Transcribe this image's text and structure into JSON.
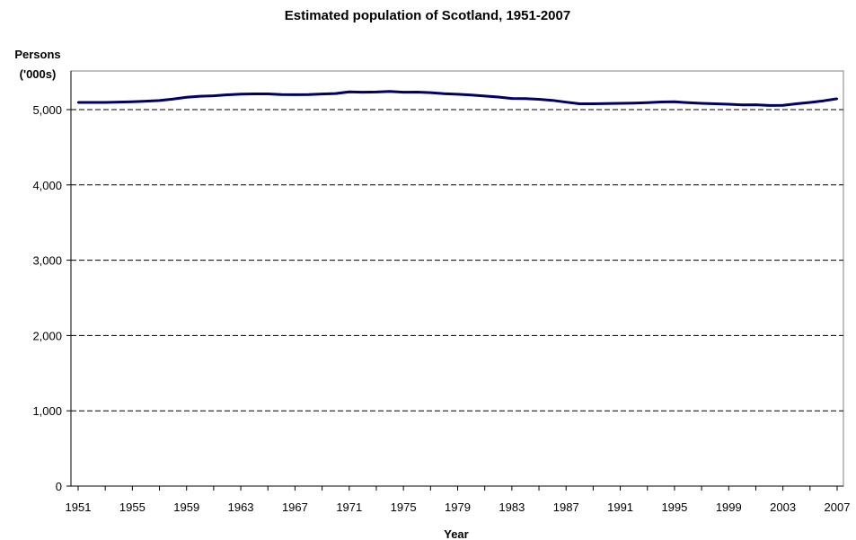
{
  "chart_data": {
    "type": "line",
    "title": "Estimated population of Scotland, 1951-2007",
    "ylabel_line1": "Persons",
    "ylabel_line2": "('000s)",
    "xlabel": "Year",
    "ylim": [
      0,
      5000
    ],
    "xlim": [
      1951,
      2007
    ],
    "grid": true,
    "legend": "none",
    "x_ticks": [
      1951,
      1955,
      1959,
      1963,
      1967,
      1971,
      1975,
      1979,
      1983,
      1987,
      1991,
      1995,
      1999,
      2003,
      2007
    ],
    "y_ticks": [
      0,
      1000,
      2000,
      3000,
      4000,
      5000
    ],
    "y_tick_labels": [
      "0",
      "1,000",
      "2,000",
      "3,000",
      "4,000",
      "5,000"
    ],
    "series": [
      {
        "color": "#000066",
        "x": [
          1951,
          1952,
          1953,
          1954,
          1955,
          1956,
          1957,
          1958,
          1959,
          1960,
          1961,
          1962,
          1963,
          1964,
          1965,
          1966,
          1967,
          1968,
          1969,
          1970,
          1971,
          1972,
          1973,
          1974,
          1975,
          1976,
          1977,
          1978,
          1979,
          1980,
          1981,
          1982,
          1983,
          1984,
          1985,
          1986,
          1987,
          1988,
          1989,
          1990,
          1991,
          1992,
          1993,
          1994,
          1995,
          1996,
          1997,
          1998,
          1999,
          2000,
          2001,
          2002,
          2003,
          2004,
          2005,
          2006,
          2007
        ],
        "values": [
          5096,
          5096,
          5096,
          5100,
          5105,
          5112,
          5120,
          5141,
          5163,
          5178,
          5184,
          5197,
          5205,
          5209,
          5209,
          5201,
          5198,
          5200,
          5208,
          5214,
          5236,
          5231,
          5234,
          5241,
          5232,
          5233,
          5226,
          5212,
          5204,
          5194,
          5180,
          5167,
          5148,
          5146,
          5137,
          5123,
          5099,
          5077,
          5078,
          5081,
          5083,
          5086,
          5092,
          5102,
          5104,
          5092,
          5083,
          5077,
          5072,
          5062,
          5064,
          5055,
          5057,
          5078,
          5095,
          5117,
          5144
        ]
      }
    ]
  }
}
